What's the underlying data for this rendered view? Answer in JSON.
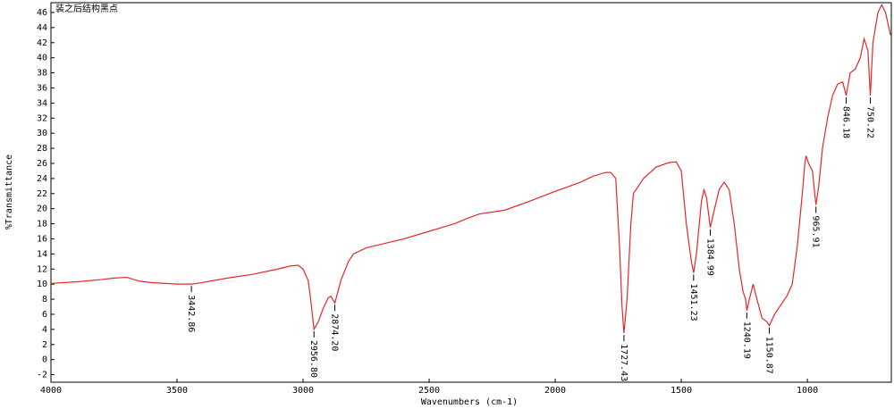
{
  "chart_data": {
    "type": "line",
    "title": "装之后结构黑点",
    "x_label": "Wavenumbers (cm-1)",
    "y_label": "%Transmittance",
    "xlim": [
      4000,
      667
    ],
    "ylim": [
      -3,
      47.3
    ],
    "xticks": [
      4000,
      3500,
      3000,
      2500,
      2000,
      1500,
      1000
    ],
    "yticks": [
      -2,
      0,
      2,
      4,
      6,
      8,
      10,
      12,
      14,
      16,
      18,
      20,
      22,
      24,
      26,
      28,
      30,
      32,
      34,
      36,
      38,
      40,
      42,
      44,
      46
    ],
    "color": "#e8262a",
    "x": [
      4000,
      3900,
      3800,
      3750,
      3700,
      3650,
      3600,
      3500,
      3442,
      3400,
      3300,
      3200,
      3100,
      3050,
      3020,
      3000,
      2980,
      2970,
      2956.8,
      2940,
      2920,
      2900,
      2890,
      2874,
      2850,
      2820,
      2800,
      2750,
      2700,
      2600,
      2500,
      2400,
      2350,
      2300,
      2200,
      2100,
      2000,
      1900,
      1850,
      1800,
      1780,
      1760,
      1745,
      1735,
      1727.43,
      1715,
      1700,
      1690,
      1650,
      1600,
      1550,
      1520,
      1500,
      1480,
      1460,
      1451,
      1440,
      1420,
      1410,
      1400,
      1385,
      1375,
      1350,
      1330,
      1310,
      1290,
      1270,
      1255,
      1245,
      1240,
      1230,
      1215,
      1200,
      1180,
      1160,
      1150.87,
      1130,
      1100,
      1080,
      1060,
      1040,
      1020,
      1010,
      1005,
      995,
      980,
      966,
      955,
      940,
      920,
      900,
      880,
      860,
      846,
      830,
      810,
      790,
      775,
      760,
      750.22,
      740,
      720,
      705,
      690,
      670
    ],
    "values": [
      10.1,
      10.3,
      10.6,
      10.8,
      10.9,
      10.4,
      10.2,
      10.0,
      10.0,
      10.2,
      10.8,
      11.3,
      12.0,
      12.4,
      12.5,
      12.0,
      10.5,
      8,
      4.0,
      5.0,
      6.8,
      8.2,
      8.4,
      7.5,
      10.5,
      13.0,
      14.0,
      14.8,
      15.2,
      16.0,
      17.0,
      18.0,
      18.7,
      19.3,
      19.8,
      21.0,
      22.3,
      23.5,
      24.3,
      24.8,
      24.8,
      24.0,
      15,
      7,
      3.5,
      8,
      18,
      22,
      24,
      25.5,
      26.1,
      26.2,
      25,
      18,
      13,
      11.5,
      14,
      21,
      22.5,
      21.5,
      17.5,
      19,
      22.5,
      23.5,
      22.5,
      18,
      12,
      9,
      8,
      6.5,
      8,
      10,
      8,
      5.5,
      5,
      4.5,
      6,
      7.5,
      8.5,
      10,
      15,
      22,
      26,
      27,
      26,
      25,
      20.5,
      23,
      28,
      32,
      35,
      36.5,
      36.8,
      35,
      38,
      38.5,
      40,
      42.5,
      41,
      35,
      42,
      46,
      47,
      46,
      43
    ],
    "peaks": {
      "x": [
        3442.86,
        2956.8,
        2874.2,
        1727.43,
        1451.23,
        1384.99,
        1240.19,
        1150.87,
        965.91,
        846.18,
        750.22
      ],
      "y": [
        10.0,
        4.0,
        7.5,
        3.5,
        11.5,
        17.5,
        6.5,
        4.5,
        20.5,
        35,
        35
      ],
      "labels": [
        "3442.86",
        "2956.80",
        "2874.20",
        "1727.43",
        "1451.23",
        "1384.99",
        "1240.19",
        "1150.87",
        "965.91",
        "846.18",
        "750.22"
      ]
    }
  }
}
